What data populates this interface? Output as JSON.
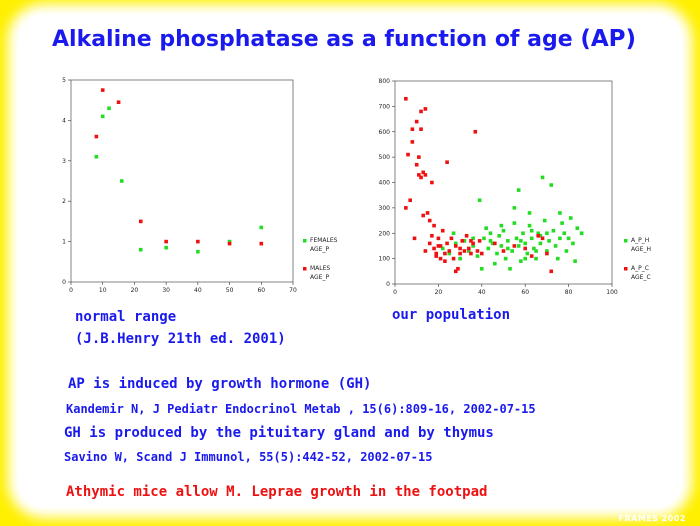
{
  "slide": {
    "title_main": "Alkaline phosphatase as a function of age",
    "title_suffix": "(AP)",
    "label_left_1": "normal range",
    "label_left_2": "(J.B.Henry 21th ed. 2001)",
    "label_right": "our population",
    "line1": "AP is induced by growth hormone (GH)",
    "line2": "Kandemir N,  J Pediatr Endocrinol Metab , 15(6):809-16, 2002-07-15",
    "line3": "GH is produced by the pituitary gland and by thymus",
    "line4": "Savino W,  Scand J Immunol, 55(5):442-52, 2002-07-15",
    "line5": "Athymic mice allow M. Leprae growth in the footpad",
    "watermark": "FRAMES 2002",
    "colors": {
      "title": "#1a1aee",
      "accent_red": "#ee1111",
      "frame": "#fff000"
    }
  },
  "chart_data": [
    {
      "type": "scatter",
      "xlim": [
        0,
        70
      ],
      "ylim": [
        0,
        5
      ],
      "x_ticks": [
        "0",
        "10",
        "20",
        "30",
        "40",
        "50",
        "60",
        "70"
      ],
      "y_ticks": [
        "0",
        "1",
        "2",
        "3",
        "4",
        "5"
      ],
      "grid": false,
      "legend_position": "right",
      "series": [
        {
          "name": "FEMALES",
          "name2": "AGE_P",
          "color": "#22dd22",
          "points": [
            [
              8,
              3.1
            ],
            [
              10,
              4.1
            ],
            [
              12,
              4.3
            ],
            [
              16,
              2.5
            ],
            [
              22,
              0.8
            ],
            [
              30,
              0.85
            ],
            [
              40,
              0.75
            ],
            [
              50,
              1.0
            ],
            [
              60,
              1.35
            ]
          ]
        },
        {
          "name": "MALES",
          "name2": "AGE_P",
          "color": "#ee1111",
          "points": [
            [
              8,
              3.6
            ],
            [
              10,
              4.75
            ],
            [
              15,
              4.45
            ],
            [
              22,
              1.5
            ],
            [
              30,
              1.0
            ],
            [
              40,
              1.0
            ],
            [
              50,
              0.95
            ],
            [
              60,
              0.95
            ]
          ]
        }
      ]
    },
    {
      "type": "scatter",
      "xlim": [
        0,
        100
      ],
      "ylim": [
        0,
        800
      ],
      "x_ticks": [
        "0",
        "20",
        "40",
        "60",
        "80",
        "100"
      ],
      "y_ticks": [
        "0",
        "100",
        "200",
        "300",
        "400",
        "500",
        "600",
        "700",
        "800"
      ],
      "grid": false,
      "legend_position": "right",
      "series": [
        {
          "name": "A_P_H",
          "name2": "AGE_H",
          "color": "#22dd22",
          "points": [
            [
              22,
              140
            ],
            [
              25,
              120
            ],
            [
              27,
              200
            ],
            [
              28,
              160
            ],
            [
              30,
              100
            ],
            [
              32,
              170
            ],
            [
              34,
              130
            ],
            [
              36,
              150
            ],
            [
              38,
              110
            ],
            [
              39,
              330
            ],
            [
              40,
              60
            ],
            [
              41,
              180
            ],
            [
              42,
              220
            ],
            [
              43,
              140
            ],
            [
              44,
              200
            ],
            [
              45,
              160
            ],
            [
              46,
              80
            ],
            [
              47,
              120
            ],
            [
              48,
              190
            ],
            [
              49,
              150
            ],
            [
              50,
              210
            ],
            [
              51,
              100
            ],
            [
              52,
              170
            ],
            [
              53,
              60
            ],
            [
              54,
              130
            ],
            [
              55,
              240
            ],
            [
              56,
              180
            ],
            [
              57,
              150
            ],
            [
              58,
              90
            ],
            [
              59,
              200
            ],
            [
              60,
              160
            ],
            [
              61,
              120
            ],
            [
              62,
              230
            ],
            [
              63,
              180
            ],
            [
              64,
              140
            ],
            [
              65,
              100
            ],
            [
              66,
              200
            ],
            [
              67,
              160
            ],
            [
              68,
              420
            ],
            [
              69,
              250
            ],
            [
              70,
              130
            ],
            [
              71,
              170
            ],
            [
              72,
              390
            ],
            [
              73,
              210
            ],
            [
              74,
              150
            ],
            [
              75,
              100
            ],
            [
              76,
              180
            ],
            [
              77,
              240
            ],
            [
              78,
              200
            ],
            [
              79,
              130
            ],
            [
              80,
              180
            ],
            [
              81,
              260
            ],
            [
              82,
              160
            ],
            [
              83,
              90
            ],
            [
              84,
              220
            ],
            [
              86,
              200
            ],
            [
              55,
              300
            ],
            [
              57,
              370
            ],
            [
              62,
              280
            ],
            [
              60,
              100
            ],
            [
              49,
              230
            ],
            [
              52,
              140
            ],
            [
              44,
              170
            ],
            [
              36,
              180
            ],
            [
              58,
              170
            ],
            [
              63,
              210
            ],
            [
              70,
              200
            ],
            [
              76,
              280
            ],
            [
              67,
              190
            ],
            [
              65,
              130
            ]
          ]
        },
        {
          "name": "A_P_C",
          "name2": "AGE_C",
          "color": "#ee1111",
          "points": [
            [
              5,
              730
            ],
            [
              6,
              510
            ],
            [
              7,
              330
            ],
            [
              5,
              300
            ],
            [
              8,
              610
            ],
            [
              9,
              180
            ],
            [
              10,
              640
            ],
            [
              11,
              500
            ],
            [
              11,
              430
            ],
            [
              12,
              680
            ],
            [
              13,
              440
            ],
            [
              14,
              690
            ],
            [
              12,
              420
            ],
            [
              13,
              270
            ],
            [
              14,
              130
            ],
            [
              15,
              280
            ],
            [
              16,
              250
            ],
            [
              16,
              160
            ],
            [
              17,
              190
            ],
            [
              18,
              140
            ],
            [
              18,
              230
            ],
            [
              19,
              110
            ],
            [
              20,
              150
            ],
            [
              20,
              180
            ],
            [
              21,
              100
            ],
            [
              22,
              210
            ],
            [
              23,
              90
            ],
            [
              24,
              160
            ],
            [
              24,
              480
            ],
            [
              25,
              130
            ],
            [
              26,
              180
            ],
            [
              27,
              100
            ],
            [
              28,
              150
            ],
            [
              29,
              60
            ],
            [
              30,
              120
            ],
            [
              31,
              170
            ],
            [
              32,
              130
            ],
            [
              33,
              190
            ],
            [
              34,
              140
            ],
            [
              35,
              120
            ],
            [
              36,
              160
            ],
            [
              37,
              600
            ],
            [
              38,
              130
            ],
            [
              39,
              170
            ],
            [
              40,
              120
            ],
            [
              14,
              430
            ],
            [
              10,
              470
            ],
            [
              17,
              400
            ],
            [
              23,
              120
            ],
            [
              30,
              140
            ],
            [
              12,
              610
            ],
            [
              8,
              560
            ],
            [
              46,
              160
            ],
            [
              50,
              130
            ],
            [
              55,
              150
            ],
            [
              60,
              140
            ],
            [
              63,
              110
            ],
            [
              70,
              120
            ],
            [
              68,
              180
            ],
            [
              72,
              50
            ],
            [
              66,
              190
            ],
            [
              28,
              50
            ],
            [
              35,
              170
            ],
            [
              21,
              150
            ],
            [
              19,
              120
            ]
          ]
        }
      ]
    }
  ]
}
